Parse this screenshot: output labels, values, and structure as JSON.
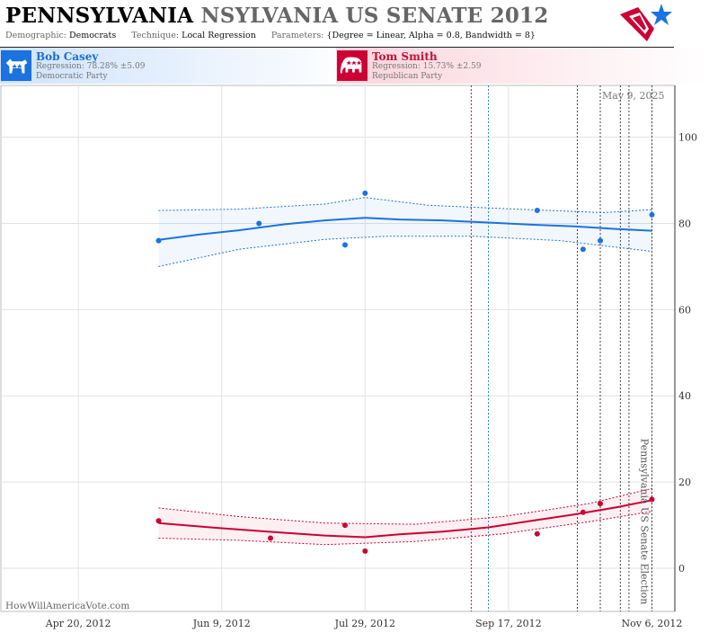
{
  "header": {
    "title_primary": "PENNSYLVANIA",
    "title_secondary": "NSYLVANIA US SENATE 2012",
    "demographic_label": "Demographic:",
    "demographic_value": "Democrats",
    "technique_label": "Technique:",
    "technique_value": "Local Regression",
    "parameters_label": "Parameters:",
    "parameters_value": "{Degree = Linear, Alpha = 0.8, Bandwidth = 8}",
    "logo_icon": "star-flag-logo-icon"
  },
  "candidates": [
    {
      "name": "Bob Casey",
      "regression": "Regression: 78.28% ±5.09",
      "party": "Democratic Party",
      "icon": "donkey-icon",
      "color": "#1a73e0"
    },
    {
      "name": "Tom Smith",
      "regression": "Regression: 15.73% ±2.59",
      "party": "Republican Party",
      "icon": "elephant-icon",
      "color": "#cc0033"
    }
  ],
  "date_stamp": "May 9, 2025",
  "watermark": "HowWillAmericaVote.com",
  "election_label": "Pennsylvania US Senate Election",
  "chart_data": {
    "type": "line",
    "ylim": [
      -10,
      112
    ],
    "y_ticks": [
      0,
      20,
      40,
      60,
      80,
      100
    ],
    "xlim": [
      "2012-03-24",
      "2012-11-14"
    ],
    "x_ticks": [
      {
        "date": "2012-04-20",
        "label": "Apr 20, 2012"
      },
      {
        "date": "2012-06-09",
        "label": "Jun 9, 2012"
      },
      {
        "date": "2012-07-29",
        "label": "Jul 29, 2012"
      },
      {
        "date": "2012-09-17",
        "label": "Sep 17, 2012"
      },
      {
        "date": "2012-11-06",
        "label": "Nov 6, 2012"
      }
    ],
    "grid": true,
    "event_lines": [
      {
        "date": "2012-09-04",
        "color": "#a0204a"
      },
      {
        "date": "2012-09-10",
        "color": "#2a8a9a"
      },
      {
        "date": "2012-10-11",
        "color": "#444444"
      },
      {
        "date": "2012-10-19",
        "color": "#444444"
      },
      {
        "date": "2012-10-26",
        "color": "#444444"
      },
      {
        "date": "2012-10-29",
        "color": "#444444"
      },
      {
        "date": "2012-11-06",
        "color": "#444444"
      }
    ],
    "series": [
      {
        "name": "Bob Casey",
        "color": "#1a73e0",
        "points": [
          {
            "x": "2012-05-18",
            "y": 76
          },
          {
            "x": "2012-06-22",
            "y": 80
          },
          {
            "x": "2012-07-22",
            "y": 75
          },
          {
            "x": "2012-07-29",
            "y": 87
          },
          {
            "x": "2012-09-27",
            "y": 83
          },
          {
            "x": "2012-10-13",
            "y": 74
          },
          {
            "x": "2012-10-19",
            "y": 76
          },
          {
            "x": "2012-11-06",
            "y": 82
          }
        ],
        "trend": [
          {
            "x": "2012-05-18",
            "y": 76.2
          },
          {
            "x": "2012-06-01",
            "y": 77.4
          },
          {
            "x": "2012-06-15",
            "y": 78.4
          },
          {
            "x": "2012-07-01",
            "y": 79.8
          },
          {
            "x": "2012-07-15",
            "y": 80.7
          },
          {
            "x": "2012-07-29",
            "y": 81.3
          },
          {
            "x": "2012-08-10",
            "y": 80.9
          },
          {
            "x": "2012-08-25",
            "y": 80.7
          },
          {
            "x": "2012-09-10",
            "y": 80.2
          },
          {
            "x": "2012-09-25",
            "y": 79.7
          },
          {
            "x": "2012-10-10",
            "y": 79.3
          },
          {
            "x": "2012-10-25",
            "y": 78.7
          },
          {
            "x": "2012-11-06",
            "y": 78.3
          }
        ],
        "band_upper": [
          {
            "x": "2012-05-18",
            "y": 83
          },
          {
            "x": "2012-06-15",
            "y": 83.3
          },
          {
            "x": "2012-07-15",
            "y": 84.5
          },
          {
            "x": "2012-07-29",
            "y": 86
          },
          {
            "x": "2012-08-20",
            "y": 84.2
          },
          {
            "x": "2012-09-20",
            "y": 83.3
          },
          {
            "x": "2012-10-20",
            "y": 82.5
          },
          {
            "x": "2012-11-06",
            "y": 83.2
          }
        ],
        "band_lower": [
          {
            "x": "2012-05-18",
            "y": 70
          },
          {
            "x": "2012-06-15",
            "y": 74
          },
          {
            "x": "2012-07-15",
            "y": 76.3
          },
          {
            "x": "2012-08-05",
            "y": 77
          },
          {
            "x": "2012-09-05",
            "y": 77
          },
          {
            "x": "2012-10-05",
            "y": 76
          },
          {
            "x": "2012-11-06",
            "y": 73.5
          }
        ]
      },
      {
        "name": "Tom Smith",
        "color": "#cc0033",
        "points": [
          {
            "x": "2012-05-18",
            "y": 11
          },
          {
            "x": "2012-06-26",
            "y": 7
          },
          {
            "x": "2012-07-22",
            "y": 10
          },
          {
            "x": "2012-07-29",
            "y": 4
          },
          {
            "x": "2012-09-27",
            "y": 8
          },
          {
            "x": "2012-10-13",
            "y": 13
          },
          {
            "x": "2012-10-19",
            "y": 15
          },
          {
            "x": "2012-11-06",
            "y": 16
          }
        ],
        "trend": [
          {
            "x": "2012-05-18",
            "y": 10.5
          },
          {
            "x": "2012-06-05",
            "y": 9.5
          },
          {
            "x": "2012-06-25",
            "y": 8.5
          },
          {
            "x": "2012-07-15",
            "y": 7.6
          },
          {
            "x": "2012-07-29",
            "y": 7.2
          },
          {
            "x": "2012-08-10",
            "y": 7.9
          },
          {
            "x": "2012-08-25",
            "y": 8.5
          },
          {
            "x": "2012-09-10",
            "y": 9.5
          },
          {
            "x": "2012-09-25",
            "y": 11
          },
          {
            "x": "2012-10-10",
            "y": 12.5
          },
          {
            "x": "2012-10-25",
            "y": 14.2
          },
          {
            "x": "2012-11-06",
            "y": 15.8
          }
        ],
        "band_upper": [
          {
            "x": "2012-05-18",
            "y": 14
          },
          {
            "x": "2012-06-15",
            "y": 12
          },
          {
            "x": "2012-07-15",
            "y": 10.5
          },
          {
            "x": "2012-08-15",
            "y": 10.2
          },
          {
            "x": "2012-09-15",
            "y": 12
          },
          {
            "x": "2012-10-15",
            "y": 15
          },
          {
            "x": "2012-11-06",
            "y": 18.5
          }
        ],
        "band_lower": [
          {
            "x": "2012-05-18",
            "y": 7
          },
          {
            "x": "2012-06-15",
            "y": 6.5
          },
          {
            "x": "2012-07-15",
            "y": 5.5
          },
          {
            "x": "2012-08-15",
            "y": 6.2
          },
          {
            "x": "2012-09-15",
            "y": 8
          },
          {
            "x": "2012-10-15",
            "y": 10.8
          },
          {
            "x": "2012-11-06",
            "y": 13.2
          }
        ]
      }
    ]
  }
}
